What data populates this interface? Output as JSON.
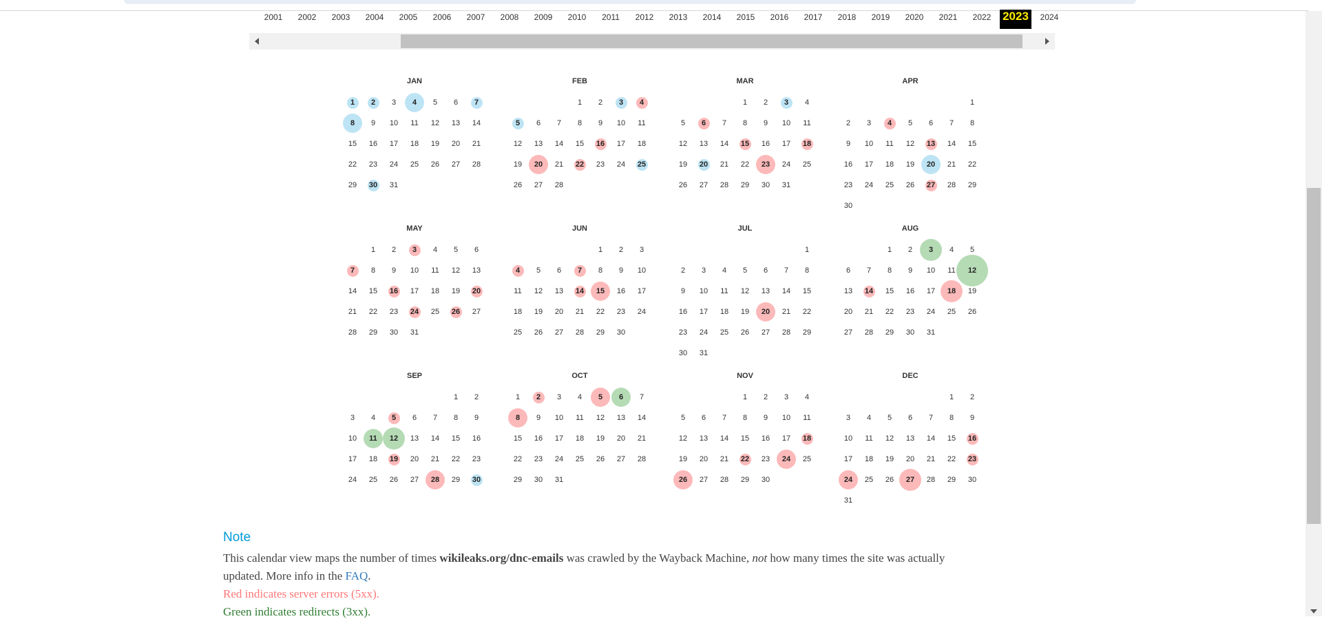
{
  "years": [
    "2001",
    "2002",
    "2003",
    "2004",
    "2005",
    "2006",
    "2007",
    "2008",
    "2009",
    "2010",
    "2011",
    "2012",
    "2013",
    "2014",
    "2015",
    "2016",
    "2017",
    "2018",
    "2019",
    "2020",
    "2021",
    "2022",
    "2023",
    "2024"
  ],
  "selected_year": "2023",
  "months": [
    {
      "label": "JAN",
      "start": 0,
      "days": 31,
      "marks": [
        [
          1,
          "blue",
          1
        ],
        [
          2,
          "blue",
          1
        ],
        [
          4,
          "blue",
          2
        ],
        [
          7,
          "blue",
          1
        ],
        [
          8,
          "blue",
          2
        ],
        [
          30,
          "blue",
          1
        ]
      ]
    },
    {
      "label": "FEB",
      "start": 3,
      "days": 28,
      "marks": [
        [
          3,
          "blue",
          1
        ],
        [
          4,
          "red",
          1
        ],
        [
          5,
          "blue",
          1
        ],
        [
          16,
          "red",
          1
        ],
        [
          20,
          "red",
          2
        ],
        [
          22,
          "red",
          1
        ],
        [
          25,
          "blue",
          1
        ]
      ]
    },
    {
      "label": "MAR",
      "start": 3,
      "days": 31,
      "marks": [
        [
          3,
          "blue",
          1
        ],
        [
          6,
          "red",
          1
        ],
        [
          15,
          "red",
          1
        ],
        [
          18,
          "red",
          1
        ],
        [
          20,
          "blue",
          1
        ],
        [
          23,
          "red",
          2
        ]
      ]
    },
    {
      "label": "APR",
      "start": 6,
      "days": 30,
      "marks": [
        [
          4,
          "red",
          1
        ],
        [
          13,
          "red",
          1
        ],
        [
          20,
          "blue",
          2
        ],
        [
          27,
          "red",
          1
        ]
      ]
    },
    {
      "label": "MAY",
      "start": 1,
      "days": 31,
      "marks": [
        [
          3,
          "red",
          1
        ],
        [
          7,
          "red",
          1
        ],
        [
          16,
          "red",
          1
        ],
        [
          20,
          "red",
          1
        ],
        [
          24,
          "red",
          1
        ],
        [
          26,
          "red",
          1
        ]
      ]
    },
    {
      "label": "JUN",
      "start": 4,
      "days": 30,
      "marks": [
        [
          4,
          "red",
          1
        ],
        [
          7,
          "red",
          1
        ],
        [
          14,
          "red",
          1
        ],
        [
          15,
          "red",
          2
        ]
      ]
    },
    {
      "label": "JUL",
      "start": 6,
      "days": 31,
      "marks": [
        [
          20,
          "red",
          2
        ]
      ]
    },
    {
      "label": "AUG",
      "start": 2,
      "days": 31,
      "marks": [
        [
          3,
          "green",
          3
        ],
        [
          12,
          "green",
          4
        ],
        [
          14,
          "red",
          1
        ],
        [
          18,
          "red",
          3
        ]
      ]
    },
    {
      "label": "SEP",
      "start": 5,
      "days": 30,
      "marks": [
        [
          5,
          "red",
          1
        ],
        [
          11,
          "green",
          2
        ],
        [
          12,
          "green",
          3
        ],
        [
          19,
          "red",
          1
        ],
        [
          28,
          "red",
          2
        ],
        [
          30,
          "blue",
          1
        ]
      ]
    },
    {
      "label": "OCT",
      "start": 0,
      "days": 31,
      "marks": [
        [
          2,
          "red",
          1
        ],
        [
          5,
          "red",
          2
        ],
        [
          6,
          "green",
          2
        ],
        [
          8,
          "red",
          2
        ]
      ]
    },
    {
      "label": "NOV",
      "start": 3,
      "days": 30,
      "marks": [
        [
          18,
          "red",
          1
        ],
        [
          22,
          "red",
          1
        ],
        [
          24,
          "red",
          2
        ],
        [
          26,
          "red",
          2
        ]
      ]
    },
    {
      "label": "DEC",
      "start": 5,
      "days": 31,
      "marks": [
        [
          16,
          "red",
          1
        ],
        [
          23,
          "red",
          1
        ],
        [
          24,
          "red",
          2
        ],
        [
          27,
          "red",
          3
        ]
      ]
    }
  ],
  "note": {
    "title": "Note",
    "line1_a": "This calendar view maps the number of times ",
    "line1_url": "wikileaks.org/dnc-emails",
    "line1_b": " was crawled by the Wayback Machine, ",
    "line1_not": "not",
    "line1_c": " how many times the site was actually",
    "line2_a": "updated. More info in the ",
    "faq_label": "FAQ",
    "line2_b": ".",
    "red_line": "Red indicates server errors (5xx).",
    "green_line": "Green indicates redirects (3xx)."
  }
}
